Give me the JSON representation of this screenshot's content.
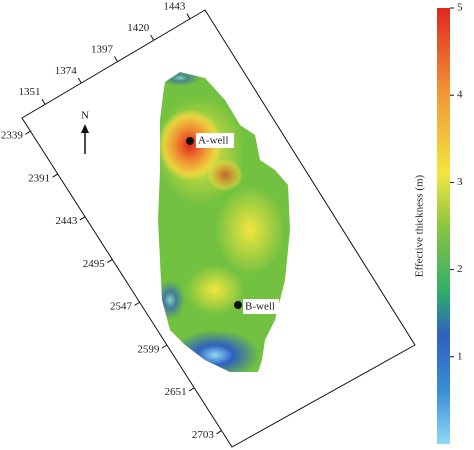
{
  "map": {
    "top_ticks": [
      1351,
      1374,
      1397,
      1420,
      1443
    ],
    "left_ticks": [
      2339,
      2391,
      2443,
      2495,
      2547,
      2599,
      2651,
      2703
    ],
    "north": "N",
    "wells": [
      "A-well",
      "B-well"
    ],
    "colorbar": {
      "label": "Effective thickness (m)",
      "lim": [
        0,
        5
      ],
      "ticks": [
        1,
        2,
        3,
        4,
        5
      ]
    }
  }
}
